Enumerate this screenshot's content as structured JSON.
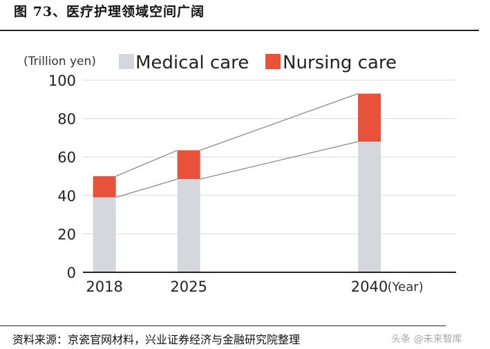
{
  "figure": {
    "title": "图 73、医疗护理领域空间广阔",
    "source": "资料来源：京瓷官网材料，兴业证券经济与金融研究院整理",
    "watermark": "头条 @未来智库"
  },
  "chart_data": {
    "type": "bar",
    "stacked": true,
    "categories": [
      "2018",
      "2025",
      "2040"
    ],
    "x_values": [
      2018,
      2025,
      2040
    ],
    "series": [
      {
        "name": "Medical care",
        "values": [
          39,
          48.5,
          68
        ],
        "color": "#d4d7db"
      },
      {
        "name": "Nursing care",
        "values": [
          11,
          15,
          25
        ],
        "color": "#e8523a"
      }
    ],
    "unit_label": "(Trillion yen)",
    "xlabel": "(Year)",
    "ylim": [
      0,
      100
    ],
    "yticks": [
      0,
      20,
      40,
      60,
      80,
      100
    ],
    "grid": true,
    "legend_position": "top"
  }
}
